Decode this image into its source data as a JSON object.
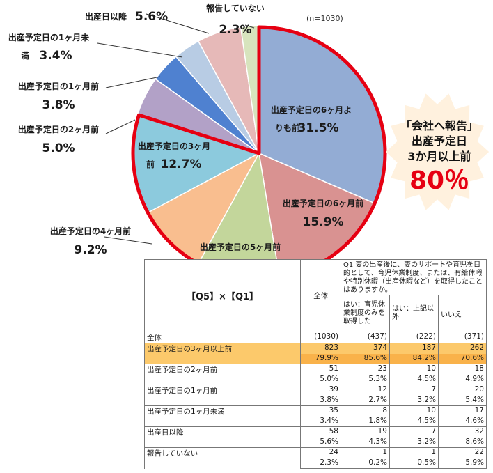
{
  "chart_data": {
    "type": "pie",
    "note": "(n=1030)",
    "slices": [
      {
        "label": "出産予定日の6ヶ月よりも前",
        "label_lines": [
          "出産予定日の6ヶ月よ",
          "りも前"
        ],
        "value": 31.5,
        "color": "#93acd4"
      },
      {
        "label": "出産予定日の6ヶ月前",
        "label_lines": [
          "出産予定日の6ヶ月前"
        ],
        "value": 15.9,
        "color": "#d99291"
      },
      {
        "label": "出産予定日の5ヶ月前",
        "label_lines": [
          "出産予定日の5ヶ月前"
        ],
        "value": 10.6,
        "color": "#c3d69b"
      },
      {
        "label": "出産予定日の4ヶ月前",
        "label_lines": [
          "出産予定日の4ヶ月前"
        ],
        "value": 9.2,
        "color": "#f9be8f"
      },
      {
        "label": "出産予定日の3ヶ月前",
        "label_lines": [
          "出産予定日の3ヶ月",
          "前"
        ],
        "value": 12.7,
        "color": "#8ccadd"
      },
      {
        "label": "出産予定日の2ヶ月前",
        "label_lines": [
          "出産予定日の2ヶ月前"
        ],
        "value": 5.0,
        "color": "#b2a1c7"
      },
      {
        "label": "出産予定日の1ヶ月前",
        "label_lines": [
          "出産予定日の1ヶ月前"
        ],
        "value": 3.8,
        "color": "#4f81d0"
      },
      {
        "label": "出産予定日の1ヶ月未満",
        "label_lines": [
          "出産予定日の1ヶ月未",
          "満"
        ],
        "value": 3.4,
        "color": "#b8cce4"
      },
      {
        "label": "出産日以降",
        "label_lines": [
          "出産日以降"
        ],
        "value": 5.6,
        "color": "#e6b9b8"
      },
      {
        "label": "報告していない",
        "label_lines": [
          "報告していない"
        ],
        "value": 2.3,
        "color": "#d7e4bd"
      }
    ],
    "highlight": {
      "from_index": 0,
      "to_index": 4,
      "color": "#e60012"
    }
  },
  "callout": {
    "lines": [
      "「会社へ報告」",
      "出産予定日",
      "3か月以上前"
    ],
    "value": "80％"
  },
  "table": {
    "corner": "【Q5】×【Q1】",
    "question": "Q1 妻の出産後に、妻のサポートや育児を目的として、育児休業制度、または、有給休暇や特別休暇（出産休暇など）を取得したことはありますか。",
    "columns": [
      "全体",
      "はい：育児休業制度のみを取得した",
      "はい：上記以外",
      "いいえ"
    ],
    "total_label": "全体",
    "totals": [
      "(1030)",
      "(437)",
      "(222)",
      "(371)"
    ],
    "rows": [
      {
        "label": "出産予定日の3ヶ月以上前",
        "counts": [
          "823",
          "374",
          "187",
          "262"
        ],
        "pcts": [
          "79.9%",
          "85.6%",
          "84.2%",
          "70.6%"
        ],
        "highlight": true
      },
      {
        "label": "出産予定日の2ヶ月前",
        "counts": [
          "51",
          "23",
          "10",
          "18"
        ],
        "pcts": [
          "5.0%",
          "5.3%",
          "4.5%",
          "4.9%"
        ]
      },
      {
        "label": "出産予定日の1ヶ月前",
        "counts": [
          "39",
          "12",
          "7",
          "20"
        ],
        "pcts": [
          "3.8%",
          "2.7%",
          "3.2%",
          "5.4%"
        ]
      },
      {
        "label": "出産予定日の1ヶ月未満",
        "counts": [
          "35",
          "8",
          "10",
          "17"
        ],
        "pcts": [
          "3.4%",
          "1.8%",
          "4.5%",
          "4.6%"
        ]
      },
      {
        "label": "出産日以降",
        "counts": [
          "58",
          "19",
          "7",
          "32"
        ],
        "pcts": [
          "5.6%",
          "4.3%",
          "3.2%",
          "8.6%"
        ]
      },
      {
        "label": "報告していない",
        "counts": [
          "24",
          "1",
          "1",
          "22"
        ],
        "pcts": [
          "2.3%",
          "0.2%",
          "0.5%",
          "5.9%"
        ]
      }
    ]
  }
}
